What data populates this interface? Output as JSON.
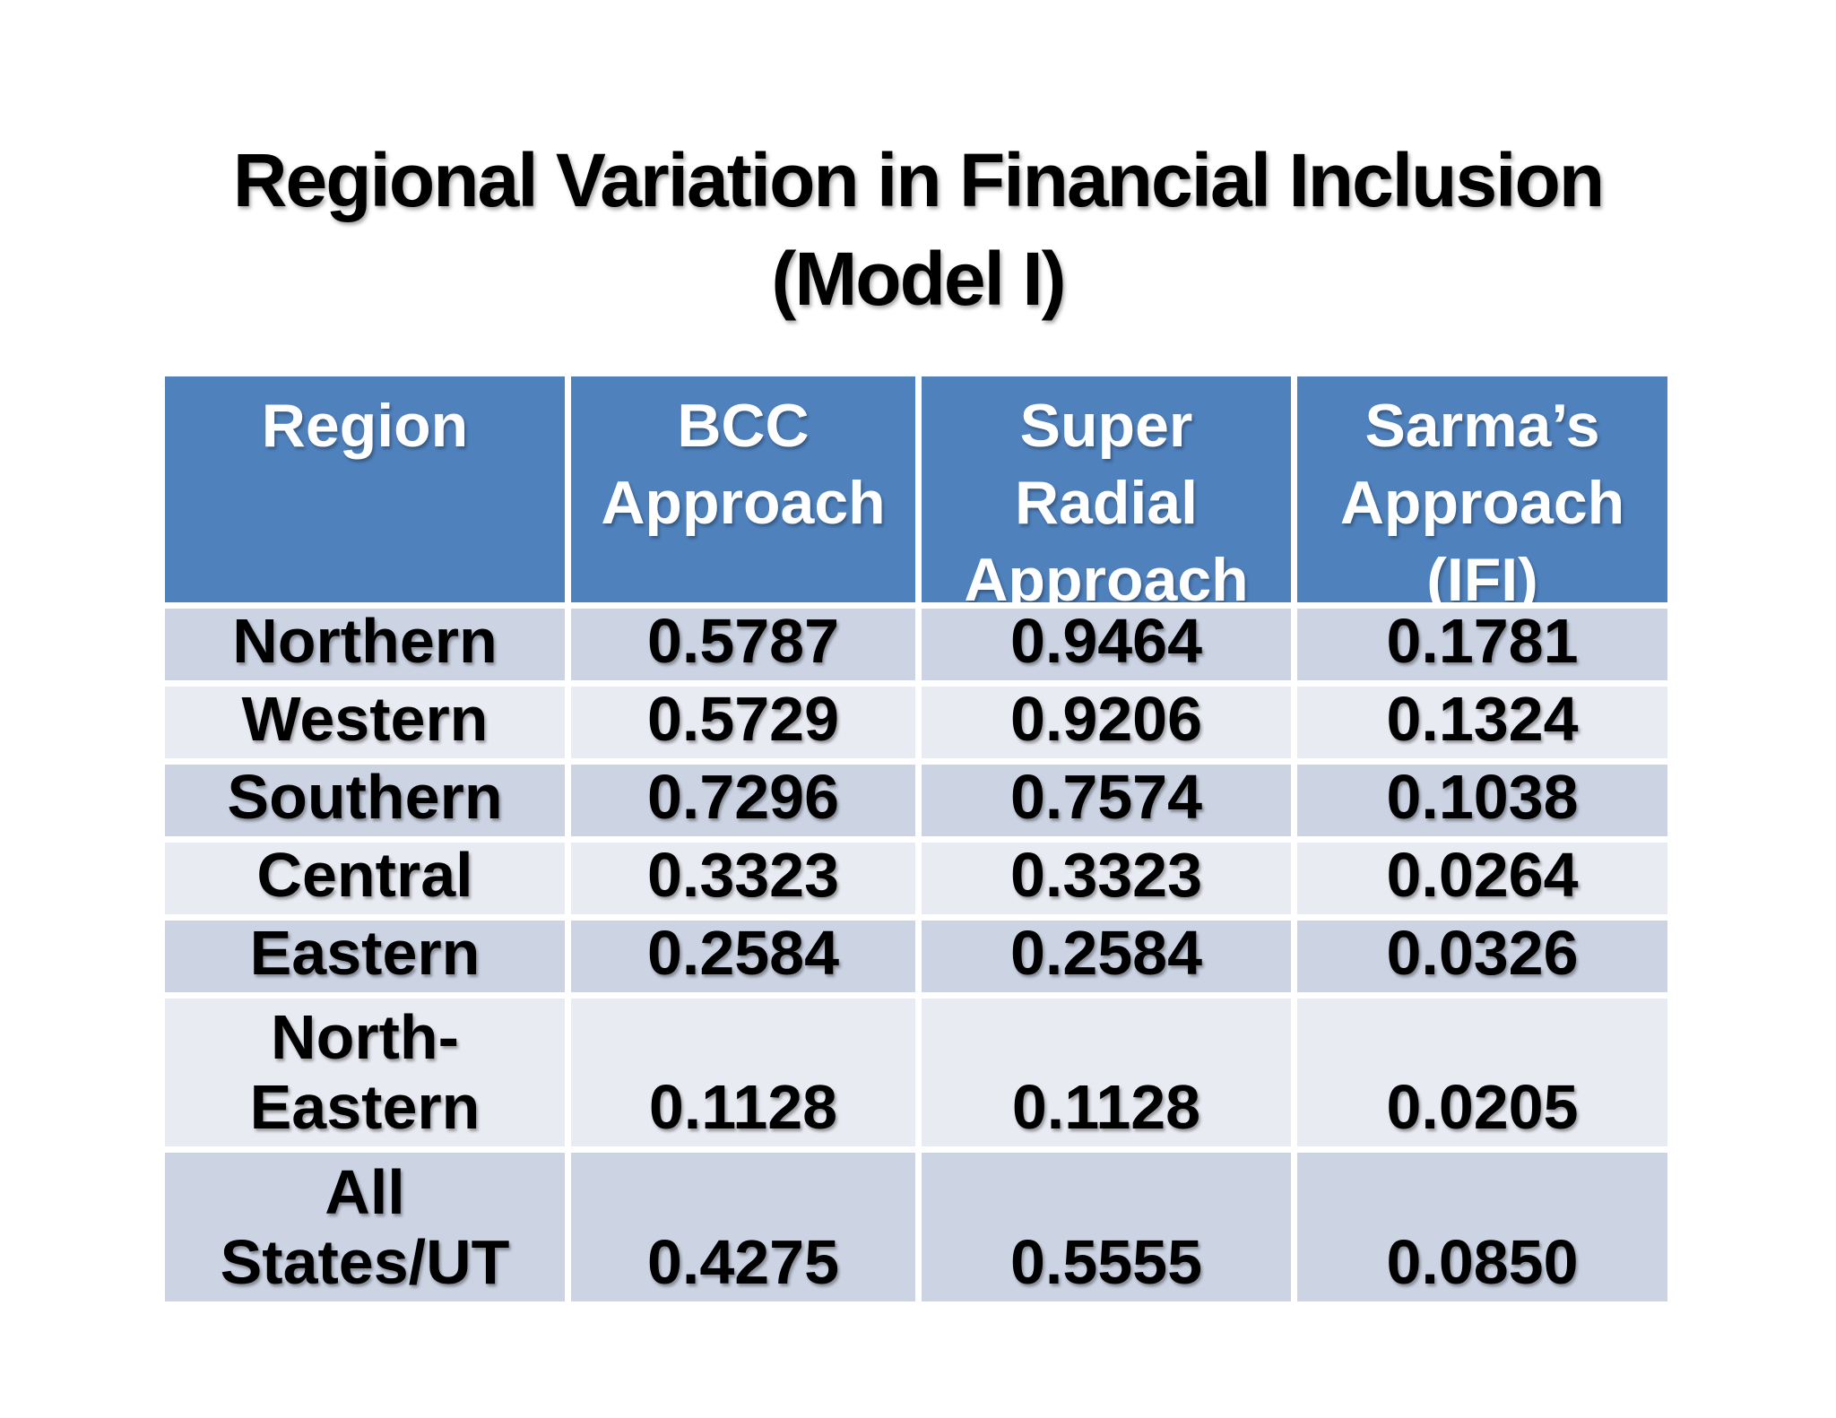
{
  "colors": {
    "page_bg": "#ffffff",
    "title_text": "#000000",
    "header_bg": "#4f81bd",
    "header_text": "#ffffff",
    "band_dark": "#ccd4e4",
    "band_light": "#e9ebf3",
    "body_text": "#000000"
  },
  "title": {
    "line1": "Regional Variation in Financial Inclusion",
    "line2": "(Model I)"
  },
  "table": {
    "columns": [
      {
        "label": "Region",
        "lines": [
          "Region"
        ]
      },
      {
        "label": "BCC Approach",
        "lines": [
          "BCC",
          "Approach"
        ]
      },
      {
        "label": "Super Radial Approach",
        "lines": [
          "Super",
          "Radial",
          "Approach"
        ]
      },
      {
        "label": "Sarma’s Approach (IFI)",
        "lines": [
          "Sarma’s",
          "Approach",
          "(IFI)"
        ]
      }
    ],
    "rows": [
      {
        "region": "Northern",
        "region_lines": [
          "Northern"
        ],
        "values": [
          "0.5787",
          "0.9464",
          "0.1781"
        ]
      },
      {
        "region": "Western",
        "region_lines": [
          "Western"
        ],
        "values": [
          "0.5729",
          "0.9206",
          "0.1324"
        ]
      },
      {
        "region": "Southern",
        "region_lines": [
          "Southern"
        ],
        "values": [
          "0.7296",
          "0.7574",
          "0.1038"
        ]
      },
      {
        "region": "Central",
        "region_lines": [
          "Central"
        ],
        "values": [
          "0.3323",
          "0.3323",
          "0.0264"
        ]
      },
      {
        "region": "Eastern",
        "region_lines": [
          "Eastern"
        ],
        "values": [
          "0.2584",
          "0.2584",
          "0.0326"
        ]
      },
      {
        "region": "North-Eastern",
        "region_lines": [
          "North-",
          "Eastern"
        ],
        "values": [
          "0.1128",
          "0.1128",
          "0.0205"
        ]
      },
      {
        "region": "All States/UT",
        "region_lines": [
          "All",
          "States/UT"
        ],
        "values": [
          "0.4275",
          "0.5555",
          "0.0850"
        ]
      }
    ]
  },
  "chart_data": {
    "type": "table",
    "title": "Regional Variation in Financial Inclusion (Model I)",
    "columns": [
      "Region",
      "BCC Approach",
      "Super Radial Approach",
      "Sarma’s Approach (IFI)"
    ],
    "rows": [
      [
        "Northern",
        0.5787,
        0.9464,
        0.1781
      ],
      [
        "Western",
        0.5729,
        0.9206,
        0.1324
      ],
      [
        "Southern",
        0.7296,
        0.7574,
        0.1038
      ],
      [
        "Central",
        0.3323,
        0.3323,
        0.0264
      ],
      [
        "Eastern",
        0.2584,
        0.2584,
        0.0326
      ],
      [
        "North-Eastern",
        0.1128,
        0.1128,
        0.0205
      ],
      [
        "All States/UT",
        0.4275,
        0.5555,
        0.085
      ]
    ]
  }
}
